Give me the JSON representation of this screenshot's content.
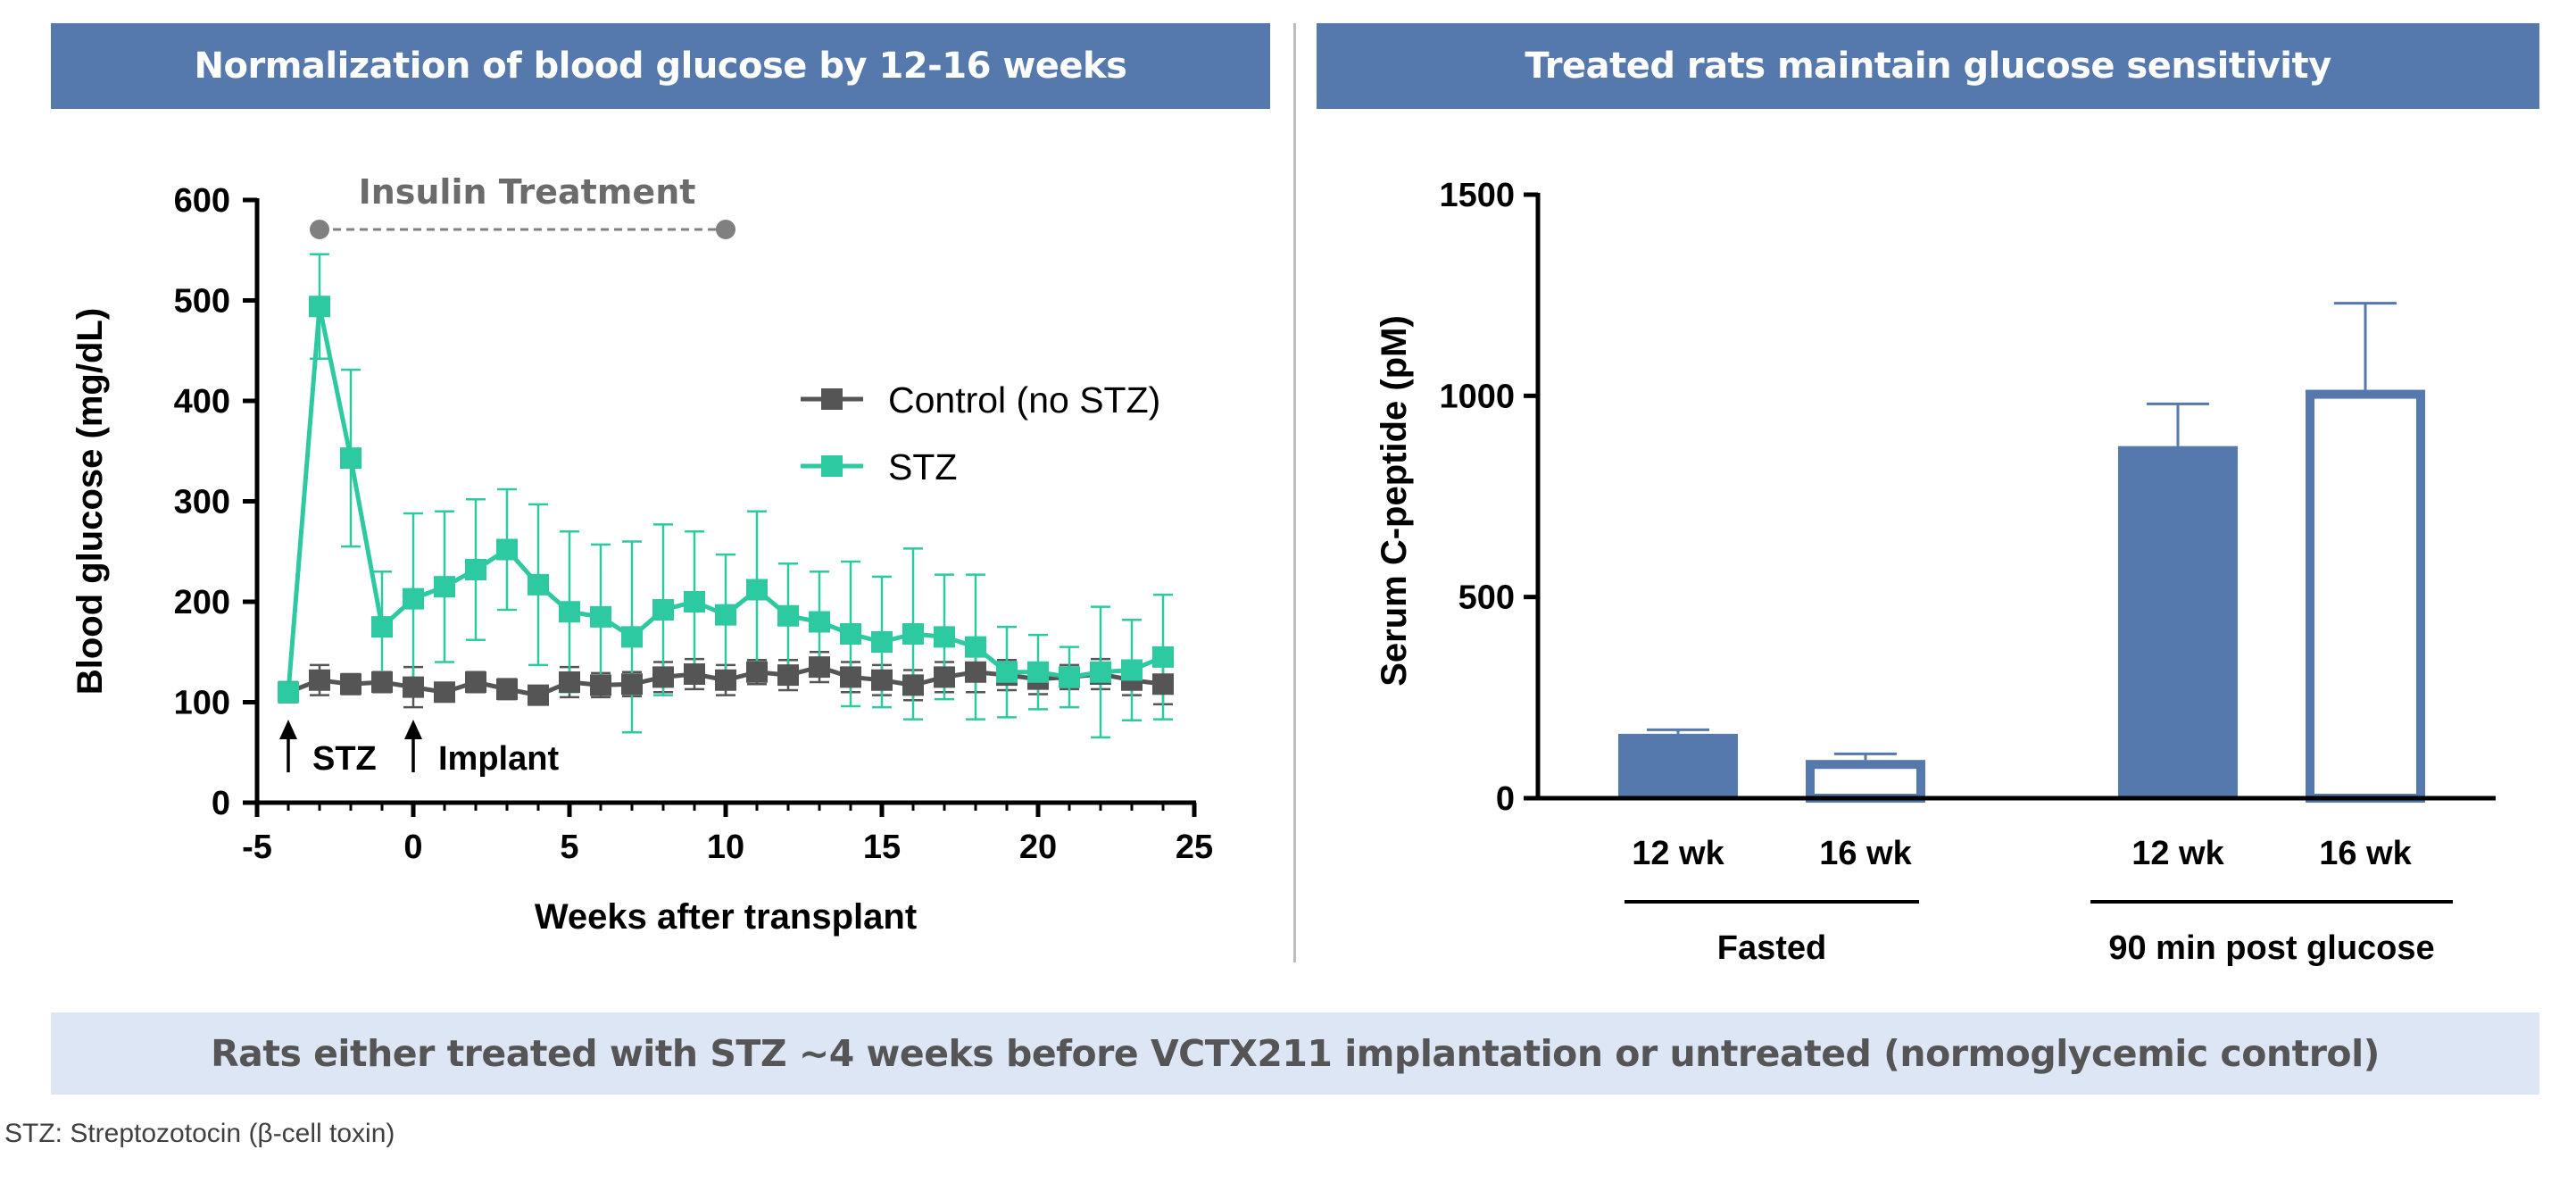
{
  "banners": {
    "left": "Normalization of blood glucose by 12-16 weeks",
    "right": "Treated rats maintain glucose sensitivity"
  },
  "footer": {
    "summary": "Rats either treated with STZ ~4 weeks before VCTX211 implantation or untreated (normoglycemic control)",
    "footnote": "STZ: Streptozotocin (β-cell toxin)"
  },
  "colors": {
    "banner": "#5579ad",
    "footer_bg": "#dde6f5",
    "control": "#555555",
    "stz": "#2dc9a0",
    "bar": "#5579ad",
    "treatment": "#808080"
  },
  "chart_data": [
    {
      "type": "line",
      "xlabel": "Weeks after transplant",
      "ylabel": "Blood glucose (mg/dL)",
      "xlim": [
        -5,
        25
      ],
      "ylim": [
        0,
        600
      ],
      "xticks": [
        -5,
        0,
        5,
        10,
        15,
        20,
        25
      ],
      "yticks": [
        0,
        100,
        200,
        300,
        400,
        500,
        600
      ],
      "legend_position": "right",
      "x": [
        -4,
        -3,
        -2,
        -1,
        0,
        1,
        2,
        3,
        4,
        5,
        6,
        7,
        8,
        9,
        10,
        11,
        12,
        13,
        14,
        15,
        16,
        17,
        18,
        19,
        20,
        21,
        22,
        23,
        24
      ],
      "series": [
        {
          "name": "Control (no STZ)",
          "values": [
            110,
            122,
            118,
            120,
            115,
            110,
            120,
            113,
            107,
            120,
            117,
            118,
            125,
            128,
            122,
            130,
            127,
            135,
            125,
            122,
            117,
            125,
            130,
            127,
            123,
            125,
            128,
            122,
            118
          ],
          "errors": [
            10,
            15,
            10,
            10,
            20,
            8,
            10,
            10,
            8,
            15,
            12,
            12,
            15,
            15,
            15,
            12,
            15,
            15,
            15,
            15,
            15,
            15,
            20,
            15,
            15,
            12,
            15,
            15,
            20
          ]
        },
        {
          "name": "STZ",
          "values": [
            110,
            494,
            343,
            175,
            203,
            215,
            232,
            252,
            217,
            190,
            185,
            165,
            192,
            200,
            187,
            212,
            186,
            180,
            168,
            160,
            168,
            165,
            155,
            130,
            130,
            125,
            130,
            132,
            145
          ],
          "errors": [
            10,
            52,
            88,
            55,
            85,
            75,
            70,
            60,
            80,
            80,
            72,
            95,
            85,
            70,
            60,
            78,
            52,
            50,
            72,
            65,
            85,
            62,
            72,
            45,
            37,
            30,
            65,
            50,
            62
          ]
        }
      ],
      "annotations": [
        {
          "label": "Insulin Treatment",
          "x_start": -3,
          "x_end": 10,
          "y": 570
        },
        {
          "label": "STZ",
          "x": -4
        },
        {
          "label": "Implant",
          "x": 0
        }
      ]
    },
    {
      "type": "bar",
      "ylabel": "Serum C-peptide (pM)",
      "ylim": [
        0,
        1500
      ],
      "yticks": [
        0,
        500,
        1000,
        1500
      ],
      "categories": [
        "12 wk",
        "16 wk",
        "12 wk",
        "16 wk"
      ],
      "groups": [
        "Fasted",
        "90 min post glucose"
      ],
      "values": [
        160,
        95,
        875,
        1015
      ],
      "errors": [
        10,
        15,
        105,
        215
      ],
      "fill": [
        "solid",
        "open",
        "solid",
        "open"
      ]
    }
  ]
}
